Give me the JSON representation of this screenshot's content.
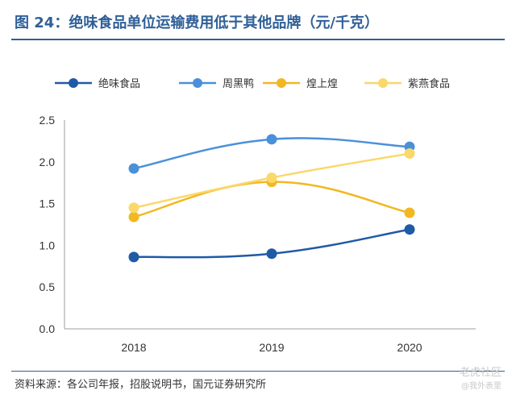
{
  "header": {
    "title": "图 24：绝味食品单位运输费用低于其他品牌（元/千克）"
  },
  "footer": {
    "source": "资料来源：各公司年报，招股说明书，国元证券研究所"
  },
  "watermark": {
    "line1": "老虎社区",
    "line2": "@我外表里"
  },
  "colors": {
    "title": "#2f5f97",
    "axis": "#9e9e9e"
  },
  "chart_data": {
    "type": "line",
    "categories": [
      "2018",
      "2019",
      "2020"
    ],
    "ylim": [
      0,
      2.5
    ],
    "yticks": [
      "0.0",
      "0.5",
      "1.0",
      "1.5",
      "2.0",
      "2.5"
    ],
    "grid": false,
    "legend_position": "top",
    "smooth": true,
    "series": [
      {
        "name": "绝味食品",
        "color": "#1f5aa6",
        "values": [
          0.86,
          0.9,
          1.19
        ]
      },
      {
        "name": "周黑鸭",
        "color": "#4a90d9",
        "values": [
          1.92,
          2.27,
          2.18
        ]
      },
      {
        "name": "煌上煌",
        "color": "#f2b822",
        "values": [
          1.34,
          1.76,
          1.39
        ]
      },
      {
        "name": "紫燕食品",
        "color": "#fad86a",
        "values": [
          1.45,
          1.81,
          2.1
        ]
      }
    ]
  }
}
